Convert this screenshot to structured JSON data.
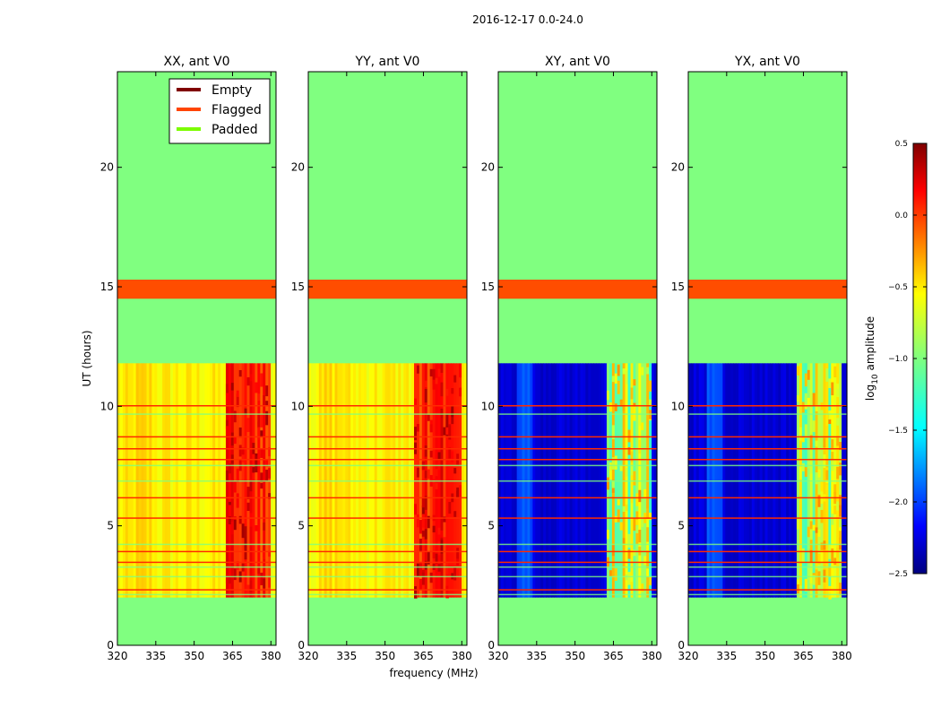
{
  "figure_title": "2016-12-17 0.0-24.0",
  "chart_data": {
    "type": "heatmap",
    "title": "2016-12-17 0.0-24.0",
    "xlabel": "frequency (MHz)",
    "ylabel": "UT (hours)",
    "xlim": [
      320,
      382
    ],
    "ylim": [
      0,
      24
    ],
    "xticks": [
      "320",
      "335",
      "350",
      "365",
      "380"
    ],
    "yticks": [
      "0",
      "5",
      "10",
      "15",
      "20"
    ],
    "panels": [
      {
        "title": "XX, ant V0",
        "kind": "auto",
        "data_ut_range": [
          2.0,
          11.8
        ],
        "flagged_ut_range": [
          14.5,
          15.3
        ],
        "padded": "elsewhere",
        "band_mhz": [
          362,
          380
        ]
      },
      {
        "title": "YY, ant V0",
        "kind": "auto",
        "data_ut_range": [
          2.0,
          11.8
        ],
        "flagged_ut_range": [
          14.5,
          15.3
        ],
        "padded": "elsewhere",
        "band_mhz": [
          361,
          380
        ]
      },
      {
        "title": "XY, ant V0",
        "kind": "cross",
        "data_ut_range": [
          2.0,
          11.8
        ],
        "flagged_ut_range": [
          14.5,
          15.3
        ],
        "padded": "elsewhere",
        "band_mhz": [
          362,
          380
        ]
      },
      {
        "title": "YX, ant V0",
        "kind": "cross",
        "data_ut_range": [
          2.0,
          11.8
        ],
        "flagged_ut_range": [
          14.5,
          15.3
        ],
        "padded": "elsewhere",
        "band_mhz": [
          362,
          380
        ]
      }
    ],
    "flagged_rows_ut": [
      2.35,
      3.5,
      3.95,
      5.35,
      6.2,
      7.8,
      8.25,
      8.75,
      10.05
    ],
    "legend": {
      "placement": "top-right",
      "entries": [
        {
          "label": "Empty",
          "color": "#800000"
        },
        {
          "label": "Flagged",
          "color": "#ff4500"
        },
        {
          "label": "Padded",
          "color": "#7cfc00"
        }
      ]
    },
    "colorbar": {
      "label_prefix": "log",
      "label_sub": "10",
      "label_suffix": " amplitude",
      "range": [
        -2.5,
        0.5
      ],
      "ticks": [
        {
          "value": 0.5,
          "label": "0.5"
        },
        {
          "value": 0.0,
          "label": "0.0"
        },
        {
          "value": -0.5,
          "label": "−0.5"
        },
        {
          "value": -1.0,
          "label": "−1.0"
        },
        {
          "value": -1.5,
          "label": "−1.5"
        },
        {
          "value": -2.0,
          "label": "−2.0"
        },
        {
          "value": -2.5,
          "label": "−2.5"
        }
      ]
    },
    "colors": {
      "padded_fill": "#80ff80",
      "flagged_fill": "#ff4d00",
      "flag_line": "#ff2a00",
      "cross_base": "#00008f",
      "auto_base": "#d7ff20"
    }
  }
}
